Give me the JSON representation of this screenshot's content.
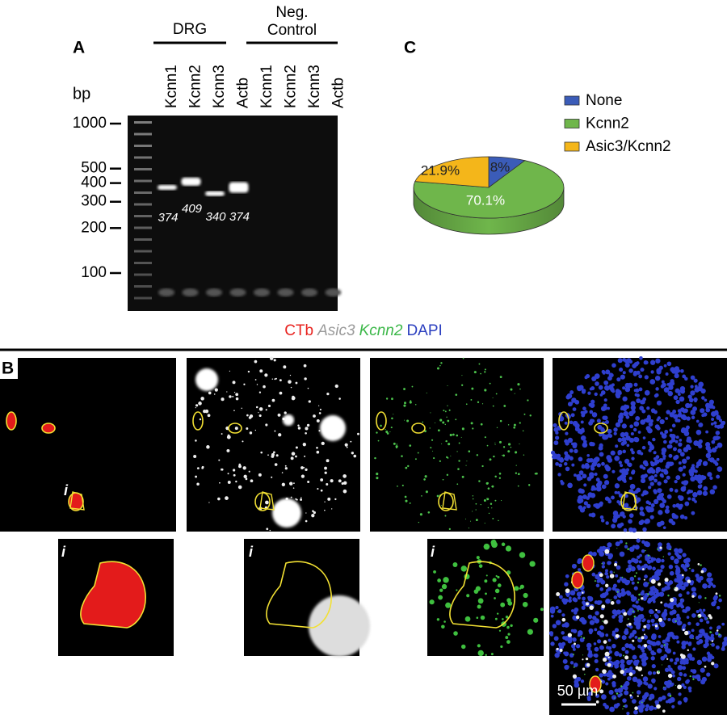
{
  "panel_a": {
    "label": "A",
    "bp_label": "bp",
    "groups": [
      {
        "lines": [
          "DRG"
        ]
      },
      {
        "lines": [
          "Neg.",
          "Control"
        ]
      }
    ],
    "lanes": [
      "Kcnn1",
      "Kcnn2",
      "Kcnn3",
      "Actb",
      "Kcnn1",
      "Kcnn2",
      "Kcnn3",
      "Actb"
    ],
    "markers": [
      1000,
      500,
      400,
      300,
      200,
      100
    ],
    "bands": [
      374,
      409,
      340,
      374
    ]
  },
  "panel_b": {
    "label": "B",
    "stains": [
      {
        "text": "CTb",
        "color": "#e8231f",
        "italic": false
      },
      {
        "text": "Asic3",
        "color": "#9a9a9a",
        "italic": true
      },
      {
        "text": "Kcnn2",
        "color": "#3db84a",
        "italic": true
      },
      {
        "text": "DAPI",
        "color": "#2b3fbf",
        "italic": false
      }
    ],
    "cell_label": "i",
    "inset_labels": [
      "i",
      "i",
      "i"
    ],
    "scale_bar": "50 µm"
  },
  "chart_data": {
    "type": "pie",
    "label": "C",
    "categories": [
      "None",
      "Kcnn2",
      "Asic3/Kcnn2"
    ],
    "values": [
      8,
      70.1,
      21.9
    ],
    "value_labels": [
      "8%",
      "70.1%",
      "21.9%"
    ],
    "colors": [
      "#3b5cb8",
      "#6fb64b",
      "#f4b61a"
    ]
  }
}
